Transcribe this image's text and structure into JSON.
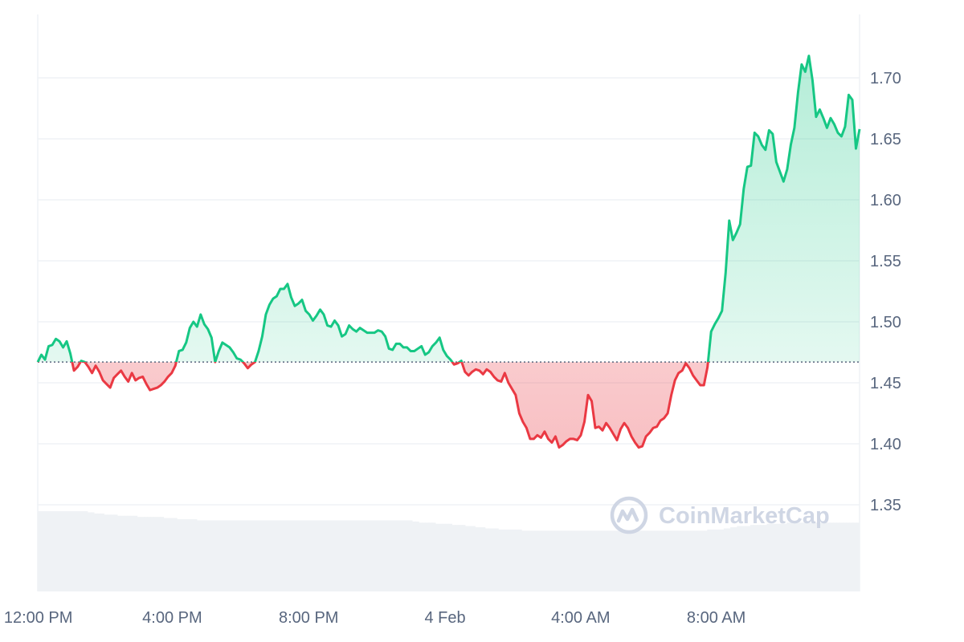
{
  "chart_data": {
    "type": "area",
    "baseline": 1.467,
    "ylim": [
      1.3,
      1.75
    ],
    "y_ticks": [
      "1.35",
      "1.40",
      "1.45",
      "1.50",
      "1.55",
      "1.60",
      "1.65",
      "1.70"
    ],
    "x_ticks": [
      "12:00 PM",
      "4:00 PM",
      "8:00 PM",
      "4 Feb",
      "4:00 AM",
      "8:00 AM"
    ],
    "grid": true,
    "colors": {
      "up": "#16c784",
      "down": "#ea3943",
      "volume": "#eff2f5",
      "grid": "#eff2f5",
      "baseline": "#58667e"
    },
    "series": [
      {
        "values": [
          1.467,
          1.473,
          1.469,
          1.48,
          1.481,
          1.486,
          1.484,
          1.479,
          1.484,
          1.474,
          1.46,
          1.463,
          1.468,
          1.467,
          1.463,
          1.458,
          1.464,
          1.459,
          1.452,
          1.449,
          1.446,
          1.454,
          1.457,
          1.46,
          1.455,
          1.451,
          1.458,
          1.452,
          1.454,
          1.455,
          1.449,
          1.444,
          1.445,
          1.446,
          1.448,
          1.451,
          1.455,
          1.458,
          1.464,
          1.476,
          1.477,
          1.483,
          1.495,
          1.5,
          1.496,
          1.506,
          1.498,
          1.494,
          1.487,
          1.467,
          1.476,
          1.483,
          1.481,
          1.479,
          1.475,
          1.47,
          1.469,
          1.466,
          1.462,
          1.465,
          1.467,
          1.476,
          1.488,
          1.506,
          1.514,
          1.519,
          1.521,
          1.527,
          1.527,
          1.531,
          1.52,
          1.513,
          1.515,
          1.518,
          1.509,
          1.506,
          1.501,
          1.505,
          1.51,
          1.506,
          1.497,
          1.496,
          1.501,
          1.497,
          1.488,
          1.49,
          1.497,
          1.494,
          1.492,
          1.495,
          1.493,
          1.491,
          1.491,
          1.491,
          1.493,
          1.492,
          1.488,
          1.478,
          1.477,
          1.482,
          1.482,
          1.479,
          1.479,
          1.476,
          1.476,
          1.478,
          1.48,
          1.473,
          1.475,
          1.48,
          1.483,
          1.487,
          1.477,
          1.472,
          1.469,
          1.465,
          1.466,
          1.468,
          1.459,
          1.456,
          1.459,
          1.461,
          1.46,
          1.457,
          1.461,
          1.459,
          1.455,
          1.452,
          1.451,
          1.458,
          1.45,
          1.445,
          1.44,
          1.425,
          1.418,
          1.413,
          1.404,
          1.404,
          1.407,
          1.405,
          1.41,
          1.404,
          1.401,
          1.406,
          1.397,
          1.399,
          1.402,
          1.404,
          1.404,
          1.403,
          1.407,
          1.418,
          1.44,
          1.435,
          1.413,
          1.414,
          1.411,
          1.417,
          1.413,
          1.408,
          1.403,
          1.412,
          1.417,
          1.413,
          1.406,
          1.401,
          1.397,
          1.398,
          1.406,
          1.409,
          1.413,
          1.414,
          1.419,
          1.421,
          1.425,
          1.44,
          1.452,
          1.458,
          1.46,
          1.466,
          1.462,
          1.456,
          1.452,
          1.448,
          1.448,
          1.463,
          1.492,
          1.498,
          1.503,
          1.509,
          1.54,
          1.583,
          1.567,
          1.573,
          1.58,
          1.609,
          1.627,
          1.628,
          1.655,
          1.652,
          1.645,
          1.641,
          1.657,
          1.654,
          1.631,
          1.623,
          1.615,
          1.625,
          1.645,
          1.659,
          1.688,
          1.711,
          1.705,
          1.718,
          1.698,
          1.668,
          1.674,
          1.667,
          1.659,
          1.667,
          1.662,
          1.655,
          1.652,
          1.66,
          1.686,
          1.682,
          1.642,
          1.658
        ]
      }
    ],
    "volume": [
      0.7,
      0.7,
      0.7,
      0.7,
      0.7,
      0.7,
      0.7,
      0.7,
      0.7,
      0.7,
      0.7,
      0.7,
      0.7,
      0.7,
      0.7,
      0.69,
      0.69,
      0.68,
      0.68,
      0.68,
      0.67,
      0.67,
      0.67,
      0.67,
      0.66,
      0.66,
      0.66,
      0.66,
      0.66,
      0.66,
      0.65,
      0.65,
      0.65,
      0.65,
      0.65,
      0.65,
      0.65,
      0.65,
      0.64,
      0.64,
      0.64,
      0.64,
      0.63,
      0.63,
      0.63,
      0.63,
      0.63,
      0.63,
      0.62,
      0.62,
      0.62,
      0.62,
      0.62,
      0.62,
      0.62,
      0.62,
      0.62,
      0.62,
      0.62,
      0.62,
      0.62,
      0.62,
      0.62,
      0.62,
      0.62,
      0.62,
      0.62,
      0.62,
      0.62,
      0.62,
      0.62,
      0.62,
      0.62,
      0.62,
      0.62,
      0.62,
      0.62,
      0.62,
      0.62,
      0.62,
      0.62,
      0.62,
      0.62,
      0.62,
      0.62,
      0.62,
      0.62,
      0.62,
      0.62,
      0.62,
      0.62,
      0.62,
      0.62,
      0.62,
      0.62,
      0.62,
      0.62,
      0.62,
      0.62,
      0.62,
      0.62,
      0.62,
      0.62,
      0.62,
      0.62,
      0.62,
      0.62,
      0.62,
      0.62,
      0.62,
      0.62,
      0.62,
      0.62,
      0.61,
      0.61,
      0.6,
      0.6,
      0.6,
      0.6,
      0.6,
      0.59,
      0.59,
      0.59,
      0.59,
      0.59,
      0.58,
      0.58,
      0.58,
      0.58,
      0.57,
      0.57,
      0.57,
      0.56,
      0.56,
      0.56,
      0.55,
      0.55,
      0.55,
      0.55,
      0.54,
      0.54,
      0.54,
      0.54,
      0.54,
      0.54,
      0.54,
      0.53,
      0.53,
      0.53,
      0.53,
      0.53,
      0.53,
      0.53,
      0.53,
      0.53,
      0.53,
      0.53,
      0.53,
      0.53,
      0.53,
      0.53,
      0.53,
      0.53,
      0.53,
      0.53,
      0.53,
      0.53,
      0.53,
      0.53,
      0.53,
      0.53,
      0.53,
      0.53,
      0.53,
      0.53,
      0.53,
      0.53,
      0.53,
      0.53,
      0.53,
      0.53,
      0.53,
      0.53,
      0.53,
      0.53,
      0.53,
      0.53,
      0.53,
      0.53,
      0.53,
      0.53,
      0.53,
      0.53,
      0.53,
      0.53,
      0.53,
      0.53,
      0.53,
      0.53,
      0.53,
      0.53,
      0.53,
      0.54,
      0.54,
      0.54,
      0.54,
      0.54,
      0.55,
      0.55,
      0.56,
      0.56,
      0.57,
      0.57,
      0.57,
      0.57,
      0.58,
      0.58,
      0.58,
      0.58,
      0.58,
      0.59,
      0.59,
      0.59,
      0.59,
      0.59,
      0.59,
      0.6,
      0.6,
      0.6,
      0.6,
      0.6,
      0.6,
      0.6,
      0.6,
      0.6,
      0.6,
      0.6,
      0.6,
      0.6,
      0.6,
      0.6,
      0.6,
      0.6,
      0.6,
      0.6,
      0.6,
      0.6,
      0.6
    ]
  },
  "watermark": {
    "text": "CoinMarketCap",
    "icon": "coinmarketcap-logo-icon"
  }
}
